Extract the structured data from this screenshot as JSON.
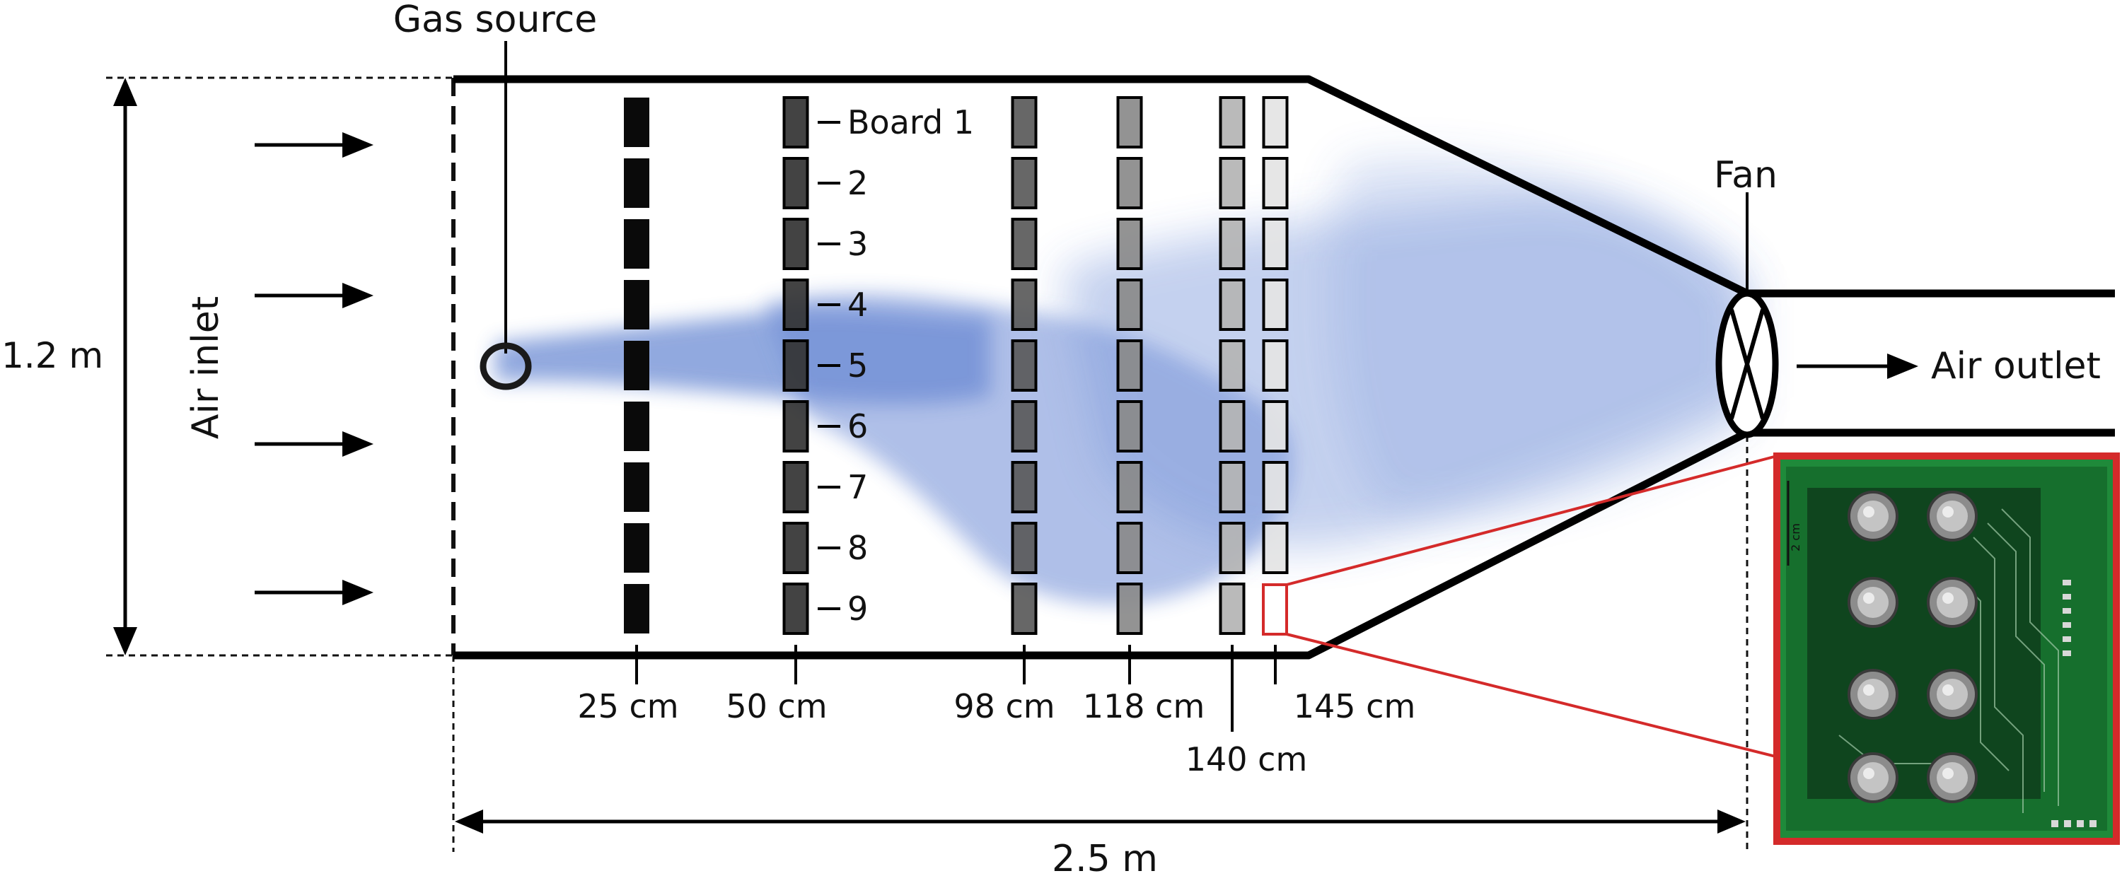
{
  "labels": {
    "gas_source": "Gas source",
    "air_inlet": "Air inlet",
    "height": "1.2 m",
    "length": "2.5 m",
    "fan": "Fan",
    "air_outlet": "Air outlet",
    "scale": "2 cm"
  },
  "boards": [
    "Board 1",
    "2",
    "3",
    "4",
    "5",
    "6",
    "7",
    "8",
    "9"
  ],
  "columns": [
    {
      "label": "25 cm",
      "color": "#0a0a0a"
    },
    {
      "label": "50 cm",
      "color": "#333333"
    },
    {
      "label": "98 cm",
      "color": "#5a5a5a"
    },
    {
      "label": "118 cm",
      "color": "#8a8a8a"
    },
    {
      "label": "140 cm",
      "color": "#b4b4b4"
    },
    {
      "label": "145 cm",
      "color": "#e4e4e4"
    }
  ],
  "colors": {
    "plume": "#5c7ecf",
    "highlight": "#d42a2a",
    "pcb": "#1f8a3a"
  }
}
